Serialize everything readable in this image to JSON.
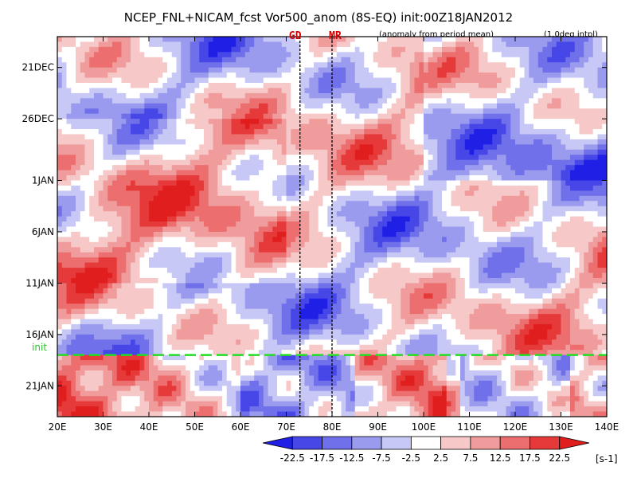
{
  "chart_data": {
    "type": "heatmap",
    "title": "NCEP_FNL+NICAM_fcst Vor500_anom (8S-EQ) init:00Z18JAN2012",
    "subtitle_left": "(anomaly from period mean)",
    "subtitle_right": "(1.0deg intpl)",
    "xlabel": "",
    "ylabel": "",
    "x_ticks": [
      "20E",
      "30E",
      "40E",
      "50E",
      "60E",
      "70E",
      "80E",
      "90E",
      "100E",
      "110E",
      "120E",
      "130E",
      "140E"
    ],
    "x_tick_values": [
      20,
      30,
      40,
      50,
      60,
      70,
      80,
      90,
      100,
      110,
      120,
      130,
      140
    ],
    "xlim": [
      20,
      140
    ],
    "y_ticks": [
      "21DEC",
      "26DEC",
      "1JAN",
      "6JAN",
      "11JAN",
      "16JAN",
      "21JAN"
    ],
    "y_tick_values": [
      3,
      8,
      14,
      19,
      24,
      29,
      34
    ],
    "ylim": [
      0,
      37
    ],
    "y_axis_note": "time axis (days from 18DEC2011), increasing downward",
    "reference_lines": [
      {
        "label": "GD",
        "lon": 73
      },
      {
        "label": "MR",
        "lon": 80
      }
    ],
    "init_line": {
      "label": "init",
      "day": 31
    },
    "colorbar": {
      "levels": [
        "-22.5",
        "-17.5",
        "-12.5",
        "-7.5",
        "-2.5",
        "2.5",
        "7.5",
        "12.5",
        "17.5",
        "22.5"
      ],
      "colors": [
        "#1f1fe6",
        "#4747e8",
        "#7070ea",
        "#9a9aee",
        "#c8c8f6",
        "#ffffff",
        "#f6c8c8",
        "#f09c9c",
        "#ec6e6e",
        "#e63a3a",
        "#e01e1e"
      ],
      "unit": "[s-1]"
    }
  }
}
